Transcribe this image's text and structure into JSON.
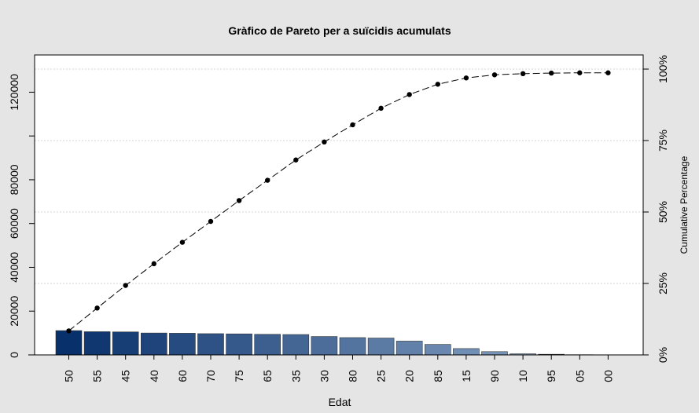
{
  "chart_data": {
    "type": "bar",
    "title": "Gràfico de Pareto per a suïcidis acumulats",
    "xlabel": "Edat",
    "ylabel": "",
    "y2label": "Cumulative Percentage",
    "categories": [
      "50",
      "55",
      "45",
      "40",
      "60",
      "70",
      "75",
      "65",
      "35",
      "30",
      "80",
      "25",
      "20",
      "85",
      "15",
      "90",
      "10",
      "95",
      "05",
      "00"
    ],
    "values": [
      11100,
      10600,
      10500,
      10000,
      9900,
      9700,
      9600,
      9400,
      9300,
      8400,
      7900,
      7700,
      6300,
      4800,
      2900,
      1500,
      500,
      300,
      100,
      50
    ],
    "cumulative_percent": [
      8.4,
      16.4,
      24.3,
      31.9,
      39.4,
      46.7,
      54.0,
      61.1,
      68.2,
      74.5,
      80.5,
      86.3,
      91.1,
      94.7,
      96.9,
      98.0,
      98.4,
      98.6,
      98.7,
      98.7
    ],
    "ylim": [
      0,
      137000
    ],
    "yticks": [
      0,
      20000,
      40000,
      60000,
      80000,
      120000
    ],
    "y2ticks": [
      "0%",
      "25%",
      "50%",
      "75%",
      "100%"
    ],
    "grid": true,
    "colors": {
      "background": "#e5e5e5",
      "plot_background": "#ffffff",
      "bar_start": "#08306b",
      "bar_end": "#c6dbef",
      "line": "#000000",
      "grid": "#d3d3d3"
    }
  }
}
